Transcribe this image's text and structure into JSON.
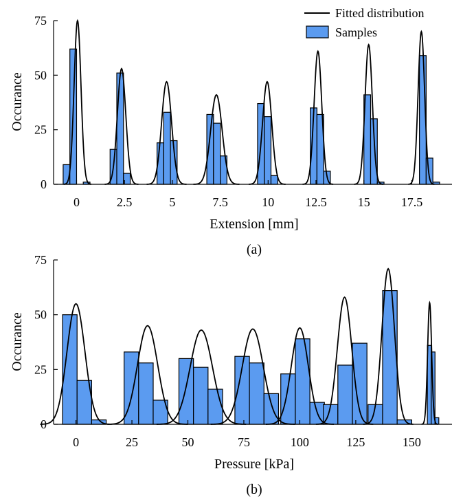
{
  "colors": {
    "bar_fill": "#5b9bf0",
    "bar_stroke": "#000000",
    "curve": "#000000",
    "axis": "#000000",
    "background": "#ffffff"
  },
  "legend": {
    "curve_label": "Fitted distribution",
    "bar_label": "Samples",
    "placement": "top-right"
  },
  "chart_data": [
    {
      "type": "bar",
      "caption": "(a)",
      "xlabel": "Extension [mm]",
      "ylabel": "Occurance",
      "xlim": [
        -1.2,
        19.6
      ],
      "ylim": [
        0,
        75
      ],
      "xticks": [
        0,
        2.5,
        5,
        7.5,
        10,
        12.5,
        15,
        17.5
      ],
      "xtick_labels": [
        "0",
        "2.5",
        "5",
        "7.5",
        "10",
        "12.5",
        "15",
        "17.5"
      ],
      "yticks": [
        0,
        25,
        50,
        75
      ],
      "ytick_labels": [
        "0",
        "25",
        "50",
        "75"
      ],
      "grid": false,
      "groups": [
        {
          "center": 0,
          "bin_width": 0.35,
          "bars": [
            [
              -0.7,
              9
            ],
            [
              -0.35,
              62
            ],
            [
              0.35,
              1
            ]
          ],
          "curve": {
            "mu": 0.05,
            "sigma": 0.18,
            "peak": 75
          }
        },
        {
          "center": 2.4,
          "bin_width": 0.35,
          "bars": [
            [
              1.75,
              16
            ],
            [
              2.1,
              51
            ],
            [
              2.45,
              5
            ]
          ],
          "curve": {
            "mu": 2.35,
            "sigma": 0.22,
            "peak": 53
          }
        },
        {
          "center": 4.9,
          "bin_width": 0.35,
          "bars": [
            [
              4.2,
              19
            ],
            [
              4.55,
              33
            ],
            [
              4.9,
              20
            ]
          ],
          "curve": {
            "mu": 4.7,
            "sigma": 0.26,
            "peak": 47
          }
        },
        {
          "center": 7.6,
          "bin_width": 0.35,
          "bars": [
            [
              6.8,
              32
            ],
            [
              7.15,
              28
            ],
            [
              7.5,
              13
            ]
          ],
          "curve": {
            "mu": 7.3,
            "sigma": 0.3,
            "peak": 41
          }
        },
        {
          "center": 10.3,
          "bin_width": 0.35,
          "bars": [
            [
              9.45,
              37
            ],
            [
              9.8,
              31
            ],
            [
              10.15,
              4
            ]
          ],
          "curve": {
            "mu": 9.95,
            "sigma": 0.24,
            "peak": 47
          }
        },
        {
          "center": 13.0,
          "bin_width": 0.35,
          "bars": [
            [
              12.2,
              35
            ],
            [
              12.55,
              32
            ],
            [
              12.9,
              6
            ]
          ],
          "curve": {
            "mu": 12.6,
            "sigma": 0.2,
            "peak": 61
          }
        },
        {
          "center": 15.8,
          "bin_width": 0.35,
          "bars": [
            [
              15.0,
              41
            ],
            [
              15.35,
              30
            ],
            [
              15.7,
              1
            ]
          ],
          "curve": {
            "mu": 15.25,
            "sigma": 0.19,
            "peak": 64
          }
        },
        {
          "center": 18.5,
          "bin_width": 0.35,
          "bars": [
            [
              17.9,
              59
            ],
            [
              18.25,
              12
            ],
            [
              18.6,
              1
            ]
          ],
          "curve": {
            "mu": 18.0,
            "sigma": 0.17,
            "peak": 70
          }
        }
      ]
    },
    {
      "type": "bar",
      "caption": "(b)",
      "xlabel": "Pressure [kPa]",
      "ylabel": "Occurance",
      "xlim": [
        -10,
        168
      ],
      "ylim": [
        0,
        75
      ],
      "xticks": [
        0,
        25,
        50,
        75,
        100,
        125,
        150
      ],
      "xtick_labels": [
        "0",
        "25",
        "50",
        "75",
        "100",
        "125",
        "150"
      ],
      "yticks": [
        0,
        25,
        50,
        75
      ],
      "ytick_labels": [
        "0",
        "25",
        "50",
        "75"
      ],
      "grid": false,
      "groups": [
        {
          "bin_width": 6.5,
          "bars": [
            [
              -6,
              50
            ],
            [
              0.5,
              20
            ],
            [
              7,
              2
            ]
          ],
          "curve": {
            "mu": 0,
            "sigma": 4.0,
            "peak": 55
          }
        },
        {
          "bin_width": 6.5,
          "bars": [
            [
              21.5,
              33
            ],
            [
              28,
              28
            ],
            [
              34.5,
              11
            ]
          ],
          "curve": {
            "mu": 32,
            "sigma": 4.5,
            "peak": 45
          }
        },
        {
          "bin_width": 6.5,
          "bars": [
            [
              46,
              30
            ],
            [
              52.5,
              26
            ],
            [
              59,
              16
            ]
          ],
          "curve": {
            "mu": 56,
            "sigma": 5.0,
            "peak": 43
          }
        },
        {
          "bin_width": 6.5,
          "bars": [
            [
              71,
              31
            ],
            [
              77.5,
              28
            ],
            [
              84,
              14
            ]
          ],
          "curve": {
            "mu": 79,
            "sigma": 4.7,
            "peak": 43.5
          }
        },
        {
          "bin_width": 6.5,
          "bars": [
            [
              91.5,
              23
            ],
            [
              98,
              39
            ],
            [
              104.5,
              10
            ]
          ],
          "curve": {
            "mu": 100,
            "sigma": 3.8,
            "peak": 44
          }
        },
        {
          "bin_width": 6.5,
          "bars": [
            [
              110.5,
              9
            ],
            [
              117,
              27
            ],
            [
              123.5,
              37
            ]
          ],
          "curve": {
            "mu": 120,
            "sigma": 3.2,
            "peak": 58
          }
        },
        {
          "bin_width": 6.5,
          "bars": [
            [
              130.5,
              9
            ],
            [
              137,
              61
            ],
            [
              143.5,
              2
            ]
          ],
          "curve": {
            "mu": 139.5,
            "sigma": 2.8,
            "peak": 71
          }
        },
        {
          "bin_width": 1.7,
          "bars": [
            [
              157,
              36
            ],
            [
              158.7,
              33
            ],
            [
              160.4,
              3
            ]
          ],
          "curve": {
            "mu": 158,
            "sigma": 0.9,
            "peak": 55.5
          }
        }
      ]
    }
  ]
}
